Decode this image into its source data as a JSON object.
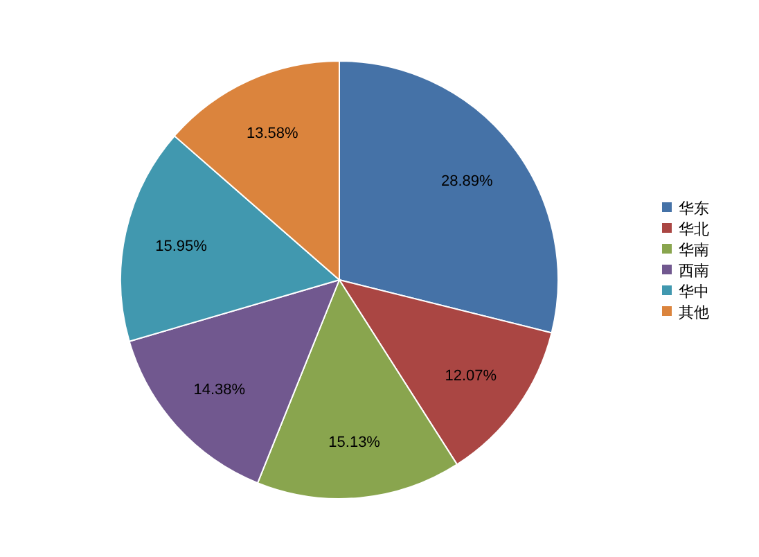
{
  "chart_data": {
    "type": "pie",
    "categories": [
      "华东",
      "华北",
      "华南",
      "西南",
      "华中",
      "其他"
    ],
    "values": [
      28.89,
      12.07,
      15.13,
      14.38,
      15.95,
      13.58
    ],
    "colors": [
      "#4572a7",
      "#aa4643",
      "#89a54e",
      "#71588f",
      "#4198af",
      "#db843d"
    ],
    "value_labels": [
      "28.89%",
      "12.07%",
      "15.13%",
      "14.38%",
      "15.95%",
      "13.58%"
    ],
    "legend": "right"
  }
}
